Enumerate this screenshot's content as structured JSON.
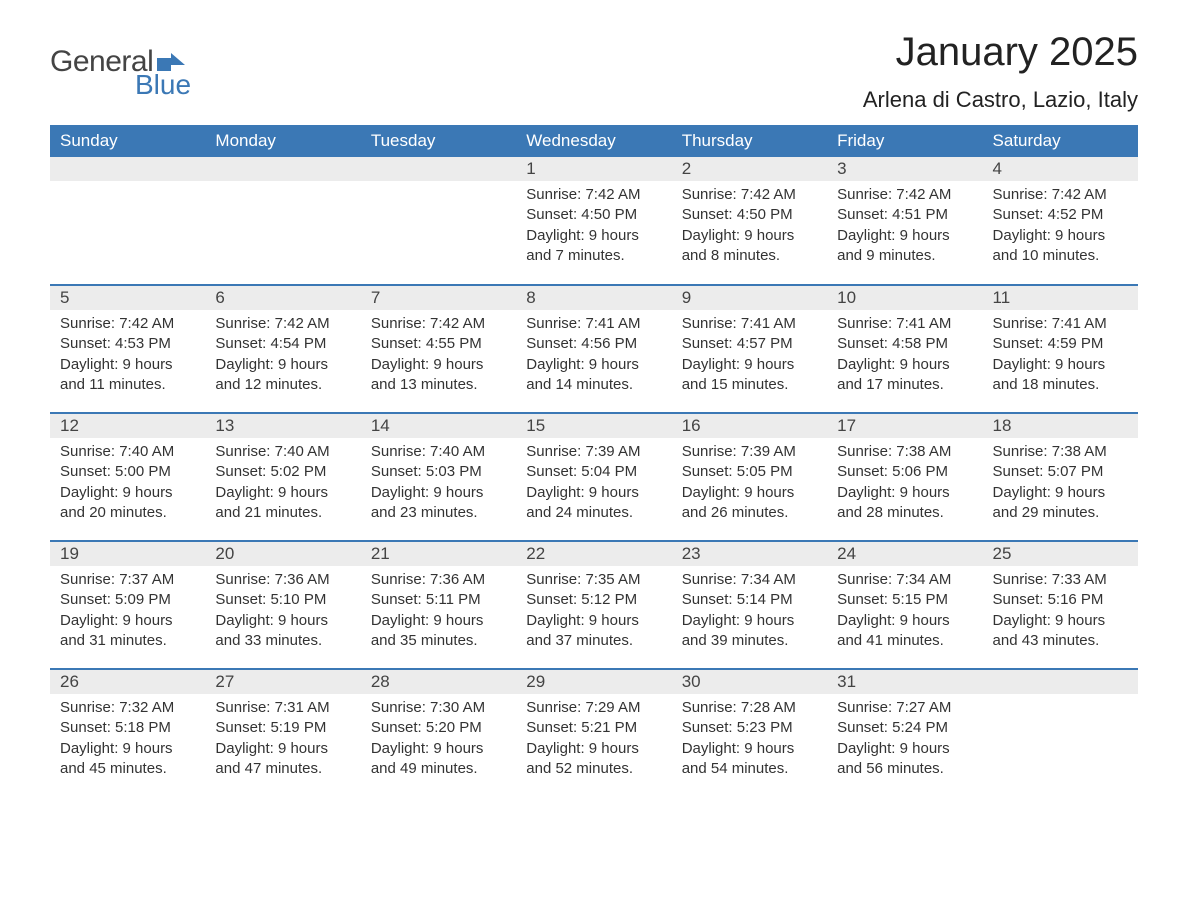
{
  "logo": {
    "general": "General",
    "blue": "Blue",
    "flag_color": "#3b78b5"
  },
  "title": "January 2025",
  "location": "Arlena di Castro, Lazio, Italy",
  "colors": {
    "header_bg": "#3b78b5",
    "header_text": "#ffffff",
    "daynum_bg": "#ececec",
    "border": "#3b78b5",
    "text": "#333333"
  },
  "weekdays": [
    "Sunday",
    "Monday",
    "Tuesday",
    "Wednesday",
    "Thursday",
    "Friday",
    "Saturday"
  ],
  "weeks": [
    [
      {
        "day": null
      },
      {
        "day": null
      },
      {
        "day": null
      },
      {
        "day": 1,
        "sunrise": "7:42 AM",
        "sunset": "4:50 PM",
        "daylight": "9 hours and 7 minutes."
      },
      {
        "day": 2,
        "sunrise": "7:42 AM",
        "sunset": "4:50 PM",
        "daylight": "9 hours and 8 minutes."
      },
      {
        "day": 3,
        "sunrise": "7:42 AM",
        "sunset": "4:51 PM",
        "daylight": "9 hours and 9 minutes."
      },
      {
        "day": 4,
        "sunrise": "7:42 AM",
        "sunset": "4:52 PM",
        "daylight": "9 hours and 10 minutes."
      }
    ],
    [
      {
        "day": 5,
        "sunrise": "7:42 AM",
        "sunset": "4:53 PM",
        "daylight": "9 hours and 11 minutes."
      },
      {
        "day": 6,
        "sunrise": "7:42 AM",
        "sunset": "4:54 PM",
        "daylight": "9 hours and 12 minutes."
      },
      {
        "day": 7,
        "sunrise": "7:42 AM",
        "sunset": "4:55 PM",
        "daylight": "9 hours and 13 minutes."
      },
      {
        "day": 8,
        "sunrise": "7:41 AM",
        "sunset": "4:56 PM",
        "daylight": "9 hours and 14 minutes."
      },
      {
        "day": 9,
        "sunrise": "7:41 AM",
        "sunset": "4:57 PM",
        "daylight": "9 hours and 15 minutes."
      },
      {
        "day": 10,
        "sunrise": "7:41 AM",
        "sunset": "4:58 PM",
        "daylight": "9 hours and 17 minutes."
      },
      {
        "day": 11,
        "sunrise": "7:41 AM",
        "sunset": "4:59 PM",
        "daylight": "9 hours and 18 minutes."
      }
    ],
    [
      {
        "day": 12,
        "sunrise": "7:40 AM",
        "sunset": "5:00 PM",
        "daylight": "9 hours and 20 minutes."
      },
      {
        "day": 13,
        "sunrise": "7:40 AM",
        "sunset": "5:02 PM",
        "daylight": "9 hours and 21 minutes."
      },
      {
        "day": 14,
        "sunrise": "7:40 AM",
        "sunset": "5:03 PM",
        "daylight": "9 hours and 23 minutes."
      },
      {
        "day": 15,
        "sunrise": "7:39 AM",
        "sunset": "5:04 PM",
        "daylight": "9 hours and 24 minutes."
      },
      {
        "day": 16,
        "sunrise": "7:39 AM",
        "sunset": "5:05 PM",
        "daylight": "9 hours and 26 minutes."
      },
      {
        "day": 17,
        "sunrise": "7:38 AM",
        "sunset": "5:06 PM",
        "daylight": "9 hours and 28 minutes."
      },
      {
        "day": 18,
        "sunrise": "7:38 AM",
        "sunset": "5:07 PM",
        "daylight": "9 hours and 29 minutes."
      }
    ],
    [
      {
        "day": 19,
        "sunrise": "7:37 AM",
        "sunset": "5:09 PM",
        "daylight": "9 hours and 31 minutes."
      },
      {
        "day": 20,
        "sunrise": "7:36 AM",
        "sunset": "5:10 PM",
        "daylight": "9 hours and 33 minutes."
      },
      {
        "day": 21,
        "sunrise": "7:36 AM",
        "sunset": "5:11 PM",
        "daylight": "9 hours and 35 minutes."
      },
      {
        "day": 22,
        "sunrise": "7:35 AM",
        "sunset": "5:12 PM",
        "daylight": "9 hours and 37 minutes."
      },
      {
        "day": 23,
        "sunrise": "7:34 AM",
        "sunset": "5:14 PM",
        "daylight": "9 hours and 39 minutes."
      },
      {
        "day": 24,
        "sunrise": "7:34 AM",
        "sunset": "5:15 PM",
        "daylight": "9 hours and 41 minutes."
      },
      {
        "day": 25,
        "sunrise": "7:33 AM",
        "sunset": "5:16 PM",
        "daylight": "9 hours and 43 minutes."
      }
    ],
    [
      {
        "day": 26,
        "sunrise": "7:32 AM",
        "sunset": "5:18 PM",
        "daylight": "9 hours and 45 minutes."
      },
      {
        "day": 27,
        "sunrise": "7:31 AM",
        "sunset": "5:19 PM",
        "daylight": "9 hours and 47 minutes."
      },
      {
        "day": 28,
        "sunrise": "7:30 AM",
        "sunset": "5:20 PM",
        "daylight": "9 hours and 49 minutes."
      },
      {
        "day": 29,
        "sunrise": "7:29 AM",
        "sunset": "5:21 PM",
        "daylight": "9 hours and 52 minutes."
      },
      {
        "day": 30,
        "sunrise": "7:28 AM",
        "sunset": "5:23 PM",
        "daylight": "9 hours and 54 minutes."
      },
      {
        "day": 31,
        "sunrise": "7:27 AM",
        "sunset": "5:24 PM",
        "daylight": "9 hours and 56 minutes."
      },
      {
        "day": null
      }
    ]
  ],
  "labels": {
    "sunrise": "Sunrise:",
    "sunset": "Sunset:",
    "daylight": "Daylight:"
  }
}
